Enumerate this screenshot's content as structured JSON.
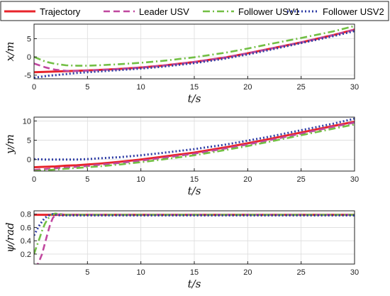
{
  "legend": {
    "placement": "top",
    "entries": [
      {
        "label": "Trajectory",
        "color": "#e8242b",
        "dash": "solid"
      },
      {
        "label": "Leader USV",
        "color": "#c0479f",
        "dash": "dash"
      },
      {
        "label": "Follower USV1",
        "color": "#72bf44",
        "dash": "dashdot"
      },
      {
        "label": "Follower USV2",
        "color": "#2f3da6",
        "dash": "dot"
      }
    ]
  },
  "chart_data": [
    {
      "type": "line",
      "xlabel": "t/s",
      "ylabel": "x/m",
      "xlim": [
        0,
        30
      ],
      "ylim": [
        -6,
        9
      ],
      "xticks": [
        0,
        5,
        10,
        15,
        20,
        25,
        30
      ],
      "yticks": [
        -5,
        0,
        5
      ],
      "grid": true,
      "x": [
        0,
        0.5,
        1,
        1.5,
        2,
        3,
        4,
        5,
        6,
        8,
        10,
        12,
        15,
        18,
        20,
        22,
        25,
        28,
        30
      ],
      "series": [
        {
          "name": "Trajectory",
          "values": [
            -4.2,
            -4.15,
            -4.1,
            -4.05,
            -4.0,
            -3.9,
            -3.8,
            -3.7,
            -3.6,
            -3.3,
            -2.9,
            -2.4,
            -1.4,
            -0.1,
            1.0,
            2.2,
            4.0,
            6.0,
            7.5
          ]
        },
        {
          "name": "Leader USV",
          "values": [
            -1.8,
            -2.3,
            -2.8,
            -3.2,
            -3.5,
            -3.8,
            -3.85,
            -3.75,
            -3.6,
            -3.3,
            -2.9,
            -2.4,
            -1.4,
            -0.1,
            1.0,
            2.2,
            4.0,
            6.0,
            7.5
          ]
        },
        {
          "name": "Follower USV1",
          "values": [
            0,
            -0.6,
            -1.2,
            -1.6,
            -1.9,
            -2.3,
            -2.4,
            -2.4,
            -2.3,
            -2.0,
            -1.6,
            -1.1,
            -0.1,
            1.2,
            2.3,
            3.5,
            5.2,
            7.0,
            8.5
          ]
        },
        {
          "name": "Follower USV2",
          "values": [
            -5.7,
            -5.5,
            -5.3,
            -5.1,
            -5.0,
            -4.7,
            -4.4,
            -4.2,
            -4.0,
            -3.6,
            -3.2,
            -2.7,
            -1.7,
            -0.4,
            0.7,
            1.9,
            3.8,
            5.7,
            7.1
          ]
        }
      ]
    },
    {
      "type": "line",
      "xlabel": "t/s",
      "ylabel": "y/m",
      "xlim": [
        0,
        30
      ],
      "ylim": [
        -3,
        11
      ],
      "xticks": [
        0,
        5,
        10,
        15,
        20,
        25,
        30
      ],
      "yticks": [
        0,
        5,
        10
      ],
      "grid": true,
      "x": [
        0,
        0.5,
        1,
        1.5,
        2,
        3,
        4,
        5,
        6,
        8,
        10,
        12,
        15,
        18,
        20,
        22,
        25,
        28,
        30
      ],
      "series": [
        {
          "name": "Trajectory",
          "values": [
            -2.0,
            -1.95,
            -1.9,
            -1.85,
            -1.8,
            -1.6,
            -1.5,
            -1.3,
            -1.1,
            -0.6,
            0,
            0.7,
            1.8,
            3.2,
            4.2,
            5.3,
            7.0,
            8.7,
            9.8
          ]
        },
        {
          "name": "Leader USV",
          "values": [
            -2.7,
            -2.6,
            -2.5,
            -2.4,
            -2.3,
            -2.1,
            -1.9,
            -1.7,
            -1.4,
            -0.9,
            -0.3,
            0.4,
            1.5,
            2.9,
            3.9,
            5.0,
            6.7,
            8.5,
            9.6
          ]
        },
        {
          "name": "Follower USV1",
          "values": [
            -3.0,
            -2.9,
            -2.8,
            -2.7,
            -2.6,
            -2.4,
            -2.2,
            -2.0,
            -1.8,
            -1.3,
            -0.7,
            0.0,
            1.1,
            2.5,
            3.5,
            4.6,
            6.3,
            8.0,
            9.1
          ]
        },
        {
          "name": "Follower USV2",
          "values": [
            0.1,
            0.05,
            0,
            0,
            0,
            0,
            0,
            0.1,
            0.3,
            0.6,
            1.1,
            1.7,
            2.7,
            3.9,
            4.9,
            5.9,
            7.6,
            9.3,
            10.6
          ]
        }
      ]
    },
    {
      "type": "line",
      "xlabel": "t/s",
      "ylabel": "ψ/rad",
      "xlim": [
        0,
        30
      ],
      "ylim": [
        0.05,
        0.85
      ],
      "xticks": [
        5,
        10,
        15,
        20,
        25,
        30
      ],
      "yticks": [
        0.2,
        0.4,
        0.6,
        0.8
      ],
      "grid": true,
      "x": [
        0,
        0.25,
        0.5,
        0.75,
        1,
        1.25,
        1.5,
        1.75,
        2,
        2.5,
        3,
        4,
        5,
        10,
        20,
        30
      ],
      "series": [
        {
          "name": "Trajectory",
          "values": [
            0.79,
            0.79,
            0.79,
            0.79,
            0.79,
            0.79,
            0.79,
            0.79,
            0.79,
            0.79,
            0.79,
            0.79,
            0.79,
            0.79,
            0.79,
            0.79
          ]
        },
        {
          "name": "Leader USV",
          "values": [
            0.0,
            0.02,
            0.1,
            0.2,
            0.35,
            0.5,
            0.64,
            0.74,
            0.79,
            0.8,
            0.79,
            0.79,
            0.79,
            0.79,
            0.79,
            0.79
          ]
        },
        {
          "name": "Follower USV1",
          "values": [
            0.2,
            0.32,
            0.43,
            0.55,
            0.65,
            0.72,
            0.77,
            0.8,
            0.81,
            0.8,
            0.79,
            0.79,
            0.79,
            0.79,
            0.79,
            0.79
          ]
        },
        {
          "name": "Follower USV2",
          "values": [
            0.48,
            0.56,
            0.63,
            0.69,
            0.74,
            0.77,
            0.79,
            0.8,
            0.79,
            0.78,
            0.78,
            0.78,
            0.78,
            0.78,
            0.78,
            0.78
          ]
        }
      ]
    }
  ]
}
